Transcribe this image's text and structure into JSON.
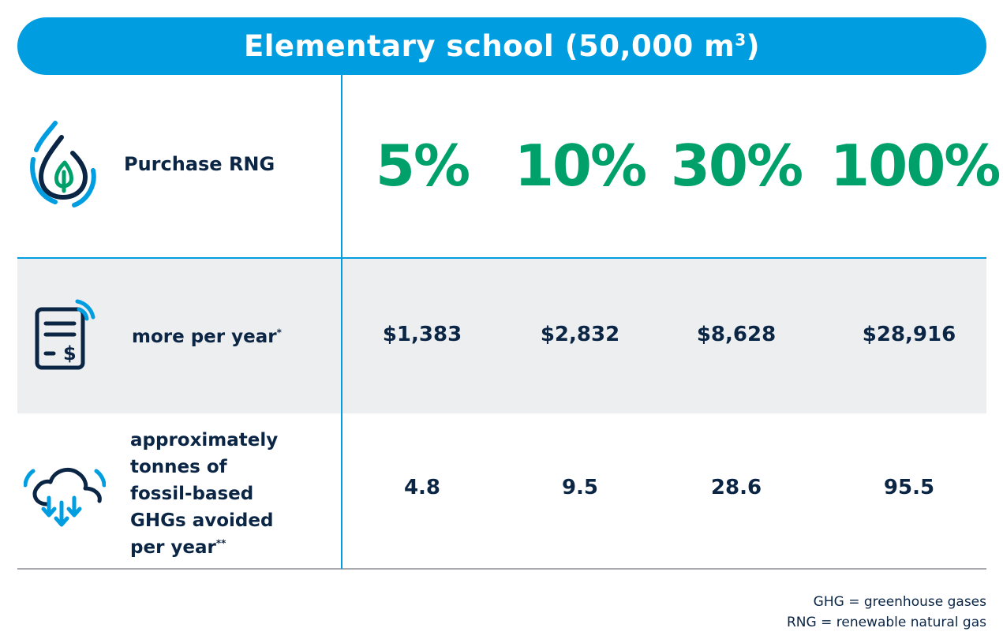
{
  "title": {
    "text": "Elementary school (50,000 m",
    "superscript": "3",
    "suffix": ")"
  },
  "rows": {
    "purchase": {
      "label": "Purchase RNG",
      "icon": "rng-drop-icon"
    },
    "cost": {
      "label": "more per year",
      "label_mark": "*",
      "icon": "bill-dollar-icon"
    },
    "ghg": {
      "label_lines": [
        "approximately",
        "tonnes of",
        "fossil-based",
        "GHGs avoided",
        "per year"
      ],
      "label_mark": "**",
      "icon": "cloud-down-arrows-icon"
    }
  },
  "chart_data": {
    "type": "table",
    "title": "Elementary school (50,000 m3)",
    "columns": [
      "5%",
      "10%",
      "30%",
      "100%"
    ],
    "rows": [
      {
        "name": "more per year*",
        "values": [
          "$1,383",
          "$2,832",
          "$8,628",
          "$28,916"
        ]
      },
      {
        "name": "approximately tonnes of fossil-based GHGs avoided per year**",
        "values": [
          "4.8",
          "9.5",
          "28.6",
          "95.5"
        ]
      }
    ]
  },
  "footnotes": [
    "GHG = greenhouse gases",
    "RNG = renewable natural gas"
  ],
  "colors": {
    "accent_blue": "#009ee0",
    "green": "#00a06a",
    "navy": "#0b2545",
    "row_gray": "#edeef0"
  }
}
